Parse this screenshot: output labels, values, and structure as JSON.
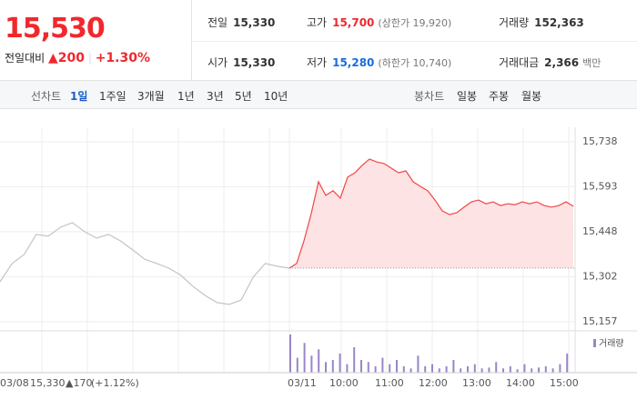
{
  "quote": {
    "price": "15,530",
    "change_label": "전일대비",
    "change": "▲200",
    "change_pct": "+1.30%"
  },
  "stats": [
    {
      "label": "전일",
      "value": "15,330"
    },
    {
      "label": "고가",
      "value": "15,700",
      "sub": "(상한가 19,920)"
    },
    {
      "label": "거래량",
      "value": "152,363"
    },
    {
      "label": "시가",
      "value": "15,330"
    },
    {
      "label": "저가",
      "value": "15,280",
      "sub": "(하한가 10,740)"
    },
    {
      "label": "거래대금",
      "value": "2,366",
      "sub": "백만"
    }
  ],
  "line_tabs": {
    "label": "선차트",
    "items": [
      "1일",
      "1주일",
      "3개월",
      "1년",
      "3년",
      "5년",
      "10년"
    ]
  },
  "candle_tabs": {
    "label": "봉차트",
    "items": [
      "일봉",
      "주봉",
      "월봉"
    ]
  },
  "chart_data": {
    "type": "line",
    "ylim": [
      15157,
      15738
    ],
    "yticks": [
      {
        "value": 15738,
        "label": "15,738"
      },
      {
        "value": 15593,
        "label": "15,593"
      },
      {
        "value": 15448,
        "label": "15,448"
      },
      {
        "value": 15302,
        "label": "15,302"
      },
      {
        "value": 15157,
        "label": "15,157"
      }
    ],
    "baseline": 15330,
    "series": [
      {
        "color": "#c4c4c4",
        "values": [
          15286,
          15345,
          15374,
          15439,
          15433,
          15462,
          15477,
          15448,
          15427,
          15439,
          15418,
          15389,
          15359,
          15345,
          15330,
          15307,
          15271,
          15242,
          15219,
          15213,
          15227,
          15301,
          15345,
          15336,
          15330
        ]
      },
      {
        "color": "#f04646",
        "values": [
          15330,
          15345,
          15418,
          15506,
          15609,
          15565,
          15580,
          15556,
          15624,
          15638,
          15662,
          15682,
          15673,
          15668,
          15653,
          15638,
          15644,
          15609,
          15594,
          15580,
          15550,
          15515,
          15503,
          15509,
          15527,
          15544,
          15550,
          15538,
          15544,
          15532,
          15538,
          15535,
          15544,
          15538,
          15544,
          15532,
          15527,
          15532,
          15544,
          15530
        ]
      }
    ],
    "volume": {
      "name": "거래량",
      "color": "#9a86c8",
      "values": [
        90,
        35,
        70,
        40,
        55,
        25,
        30,
        45,
        20,
        60,
        30,
        25,
        15,
        35,
        20,
        30,
        15,
        10,
        40,
        15,
        20,
        10,
        15,
        30,
        10,
        15,
        20,
        10,
        12,
        25,
        10,
        15,
        8,
        20,
        10,
        12,
        15,
        10,
        20,
        45
      ]
    },
    "x_labels": [
      "03/08",
      "03/11",
      "10:00",
      "11:00",
      "12:00",
      "13:00",
      "14:00",
      "15:00"
    ],
    "prev_summary": {
      "price": "15,330",
      "change": "▲170",
      "change_pct": "(+1.12%)"
    }
  }
}
